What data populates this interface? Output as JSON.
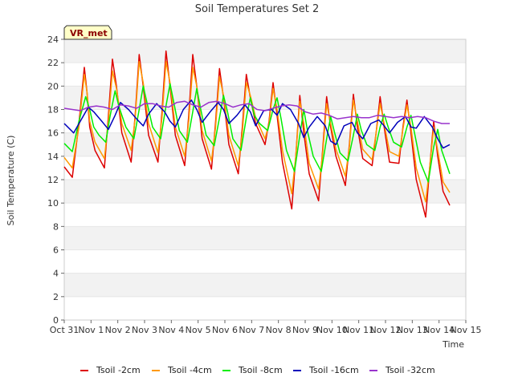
{
  "chart_data": {
    "type": "line",
    "title": "Soil Temperatures Set 2",
    "xlabel": "Time",
    "ylabel": "Soil Temperature (C)",
    "badge": "VR_met",
    "ylim": [
      0,
      24
    ],
    "yticks": [
      0,
      2,
      4,
      6,
      8,
      10,
      12,
      14,
      16,
      18,
      20,
      22,
      24
    ],
    "xlim": [
      0,
      15
    ],
    "xticks": [
      {
        "pos": 0,
        "label": "Oct 31"
      },
      {
        "pos": 1,
        "label": "Nov 1"
      },
      {
        "pos": 2,
        "label": "Nov 2"
      },
      {
        "pos": 3,
        "label": "Nov 3"
      },
      {
        "pos": 4,
        "label": "Nov 4"
      },
      {
        "pos": 5,
        "label": "Nov 5"
      },
      {
        "pos": 6,
        "label": "Nov 6"
      },
      {
        "pos": 7,
        "label": "Nov 7"
      },
      {
        "pos": 8,
        "label": "Nov 8"
      },
      {
        "pos": 9,
        "label": "Nov 9"
      },
      {
        "pos": 10,
        "label": "Nov 10"
      },
      {
        "pos": 11,
        "label": "Nov 11"
      },
      {
        "pos": 12,
        "label": "Nov 12"
      },
      {
        "pos": 13,
        "label": "Nov 13"
      },
      {
        "pos": 14,
        "label": "Nov 14"
      },
      {
        "pos": 15,
        "label": "Nov 15"
      }
    ],
    "grid": "horizontal bands",
    "legend_position": "bottom",
    "series": [
      {
        "name": "Tsoil -2cm",
        "color": "#dd0000",
        "x": [
          0.0,
          0.3,
          0.55,
          0.75,
          0.85,
          0.95,
          1.15,
          1.5,
          1.65,
          1.8,
          1.95,
          2.15,
          2.5,
          2.65,
          2.8,
          2.95,
          3.15,
          3.5,
          3.65,
          3.8,
          3.95,
          4.15,
          4.5,
          4.65,
          4.8,
          4.95,
          5.15,
          5.5,
          5.65,
          5.8,
          5.95,
          6.15,
          6.5,
          6.65,
          6.8,
          6.95,
          7.15,
          7.5,
          7.65,
          7.8,
          7.95,
          8.15,
          8.5,
          8.65,
          8.8,
          8.95,
          9.15,
          9.5,
          9.65,
          9.8,
          9.95,
          10.15,
          10.5,
          10.65,
          10.8,
          10.95,
          11.15,
          11.5,
          11.65,
          11.8,
          11.95,
          12.15,
          12.5,
          12.65,
          12.8,
          12.95,
          13.15,
          13.5,
          13.65,
          13.8,
          13.95,
          14.15,
          14.4
        ],
        "y": [
          13.1,
          12.2,
          16.8,
          21.6,
          19.5,
          16.5,
          14.5,
          13.0,
          17.5,
          22.3,
          20.0,
          16.0,
          13.5,
          17.5,
          22.7,
          20.0,
          15.8,
          13.5,
          17.8,
          23.0,
          20.0,
          15.8,
          13.2,
          17.5,
          22.7,
          20.0,
          15.5,
          12.9,
          16.8,
          21.5,
          19.0,
          15.0,
          12.5,
          16.5,
          21.0,
          19.0,
          16.8,
          15.0,
          17.0,
          20.3,
          17.5,
          13.5,
          9.5,
          14.0,
          19.2,
          16.0,
          12.5,
          10.2,
          14.5,
          19.1,
          16.5,
          14.0,
          11.5,
          15.0,
          19.3,
          16.5,
          13.8,
          13.2,
          16.0,
          19.1,
          16.5,
          13.5,
          13.4,
          16.5,
          18.8,
          16.0,
          12.0,
          8.8,
          13.0,
          17.0,
          14.0,
          11.0,
          9.8
        ]
      },
      {
        "name": "Tsoil -4cm",
        "color": "#ff9900",
        "x": [
          0.0,
          0.3,
          0.55,
          0.75,
          0.85,
          0.95,
          1.15,
          1.5,
          1.65,
          1.8,
          1.95,
          2.15,
          2.5,
          2.65,
          2.8,
          2.95,
          3.15,
          3.5,
          3.65,
          3.8,
          3.95,
          4.15,
          4.5,
          4.65,
          4.8,
          4.95,
          5.15,
          5.5,
          5.65,
          5.8,
          5.95,
          6.15,
          6.5,
          6.65,
          6.8,
          6.95,
          7.15,
          7.5,
          7.65,
          7.8,
          7.95,
          8.15,
          8.5,
          8.65,
          8.8,
          8.95,
          9.15,
          9.5,
          9.65,
          9.8,
          9.95,
          10.15,
          10.5,
          10.65,
          10.8,
          10.95,
          11.15,
          11.5,
          11.65,
          11.8,
          11.95,
          12.15,
          12.5,
          12.65,
          12.8,
          12.95,
          13.15,
          13.5,
          13.65,
          13.8,
          13.95,
          14.15,
          14.4
        ],
        "y": [
          13.9,
          13.0,
          16.5,
          21.0,
          19.5,
          17.0,
          15.2,
          13.8,
          17.0,
          21.3,
          19.8,
          16.8,
          14.5,
          17.2,
          22.1,
          20.3,
          16.8,
          14.3,
          17.3,
          22.1,
          20.3,
          16.5,
          14.0,
          17.0,
          21.6,
          20.0,
          16.2,
          13.6,
          16.4,
          20.8,
          19.2,
          15.8,
          13.2,
          16.0,
          20.3,
          19.2,
          17.3,
          15.5,
          16.8,
          19.8,
          18.0,
          14.5,
          10.8,
          14.0,
          18.7,
          16.8,
          13.4,
          11.2,
          14.2,
          18.5,
          16.8,
          14.6,
          12.3,
          14.8,
          18.8,
          17.0,
          14.6,
          13.7,
          16.0,
          18.5,
          16.8,
          14.4,
          14.0,
          16.3,
          18.4,
          16.5,
          13.0,
          10.1,
          13.0,
          16.5,
          14.5,
          11.8,
          10.9
        ]
      },
      {
        "name": "Tsoil -8cm",
        "color": "#00ee00",
        "x": [
          0.0,
          0.3,
          0.55,
          0.8,
          0.95,
          1.1,
          1.3,
          1.55,
          1.7,
          1.9,
          2.05,
          2.3,
          2.6,
          2.8,
          2.95,
          3.1,
          3.3,
          3.6,
          3.8,
          3.95,
          4.1,
          4.3,
          4.6,
          4.8,
          4.95,
          5.1,
          5.3,
          5.6,
          5.8,
          5.95,
          6.1,
          6.3,
          6.6,
          6.8,
          6.95,
          7.1,
          7.3,
          7.6,
          7.8,
          7.95,
          8.1,
          8.3,
          8.6,
          8.8,
          8.95,
          9.1,
          9.3,
          9.6,
          9.8,
          9.95,
          10.1,
          10.3,
          10.6,
          10.8,
          10.95,
          11.1,
          11.3,
          11.6,
          11.8,
          11.95,
          12.1,
          12.3,
          12.6,
          12.8,
          12.95,
          13.1,
          13.3,
          13.6,
          13.8,
          13.95,
          14.1,
          14.4
        ],
        "y": [
          15.1,
          14.4,
          17.0,
          19.1,
          18.0,
          16.5,
          15.8,
          15.2,
          17.3,
          19.6,
          18.2,
          16.5,
          15.5,
          18.0,
          20.0,
          18.5,
          16.5,
          15.5,
          18.3,
          20.2,
          18.5,
          16.2,
          15.2,
          17.8,
          19.8,
          18.0,
          15.8,
          14.9,
          17.3,
          19.2,
          17.8,
          15.5,
          14.5,
          17.3,
          19.0,
          17.5,
          16.8,
          16.2,
          18.0,
          19.0,
          17.2,
          14.5,
          12.7,
          15.8,
          18.0,
          16.0,
          14.0,
          12.7,
          15.5,
          17.4,
          16.0,
          14.3,
          13.6,
          15.8,
          17.6,
          16.2,
          15.0,
          14.5,
          16.5,
          17.6,
          16.5,
          15.2,
          14.8,
          16.5,
          17.5,
          15.8,
          13.5,
          11.8,
          14.8,
          16.3,
          14.5,
          12.5
        ]
      },
      {
        "name": "Tsoil -16cm",
        "color": "#0000bb",
        "x": [
          0.0,
          0.35,
          0.6,
          0.9,
          1.1,
          1.4,
          1.65,
          1.9,
          2.1,
          2.4,
          2.7,
          2.95,
          3.15,
          3.45,
          3.75,
          3.95,
          4.15,
          4.45,
          4.75,
          4.95,
          5.15,
          5.45,
          5.75,
          5.95,
          6.15,
          6.45,
          6.75,
          6.95,
          7.15,
          7.45,
          7.75,
          7.95,
          8.15,
          8.45,
          8.75,
          8.95,
          9.15,
          9.45,
          9.75,
          9.95,
          10.15,
          10.45,
          10.75,
          10.95,
          11.15,
          11.45,
          11.75,
          11.95,
          12.15,
          12.45,
          12.75,
          12.95,
          13.15,
          13.45,
          13.75,
          13.95,
          14.15,
          14.4
        ],
        "y": [
          16.8,
          16.0,
          17.0,
          18.2,
          17.8,
          17.0,
          16.3,
          17.5,
          18.6,
          18.0,
          17.2,
          16.6,
          17.6,
          18.5,
          17.8,
          17.0,
          16.5,
          18.0,
          18.8,
          18.0,
          16.9,
          17.8,
          18.6,
          18.0,
          16.8,
          17.5,
          18.4,
          17.8,
          16.6,
          17.9,
          18.0,
          17.5,
          18.5,
          18.0,
          16.8,
          15.6,
          16.5,
          17.4,
          16.6,
          15.3,
          15.0,
          16.6,
          16.9,
          16.0,
          15.5,
          16.8,
          17.1,
          16.6,
          16.0,
          16.9,
          17.4,
          16.5,
          16.4,
          17.4,
          16.5,
          15.5,
          14.7,
          15.0
        ]
      },
      {
        "name": "Tsoil -32cm",
        "color": "#9933cc",
        "x": [
          0.0,
          0.3,
          0.6,
          0.9,
          1.2,
          1.5,
          1.8,
          2.1,
          2.4,
          2.7,
          3.0,
          3.3,
          3.6,
          3.9,
          4.2,
          4.5,
          4.8,
          5.1,
          5.4,
          5.7,
          6.0,
          6.3,
          6.6,
          6.9,
          7.2,
          7.5,
          7.8,
          8.1,
          8.4,
          8.7,
          9.0,
          9.3,
          9.6,
          9.9,
          10.2,
          10.5,
          10.8,
          11.1,
          11.4,
          11.7,
          12.0,
          12.3,
          12.6,
          12.9,
          13.2,
          13.5,
          13.8,
          14.1,
          14.4
        ],
        "y": [
          18.1,
          18.0,
          17.9,
          18.2,
          18.3,
          18.2,
          18.0,
          18.4,
          18.3,
          18.1,
          18.5,
          18.5,
          18.3,
          18.2,
          18.6,
          18.7,
          18.4,
          18.2,
          18.6,
          18.7,
          18.5,
          18.2,
          18.4,
          18.5,
          18.0,
          17.9,
          18.1,
          18.3,
          18.4,
          18.3,
          17.8,
          17.6,
          17.7,
          17.5,
          17.2,
          17.3,
          17.4,
          17.3,
          17.3,
          17.5,
          17.4,
          17.3,
          17.4,
          17.3,
          17.4,
          17.3,
          17.0,
          16.8,
          16.8
        ]
      }
    ]
  }
}
